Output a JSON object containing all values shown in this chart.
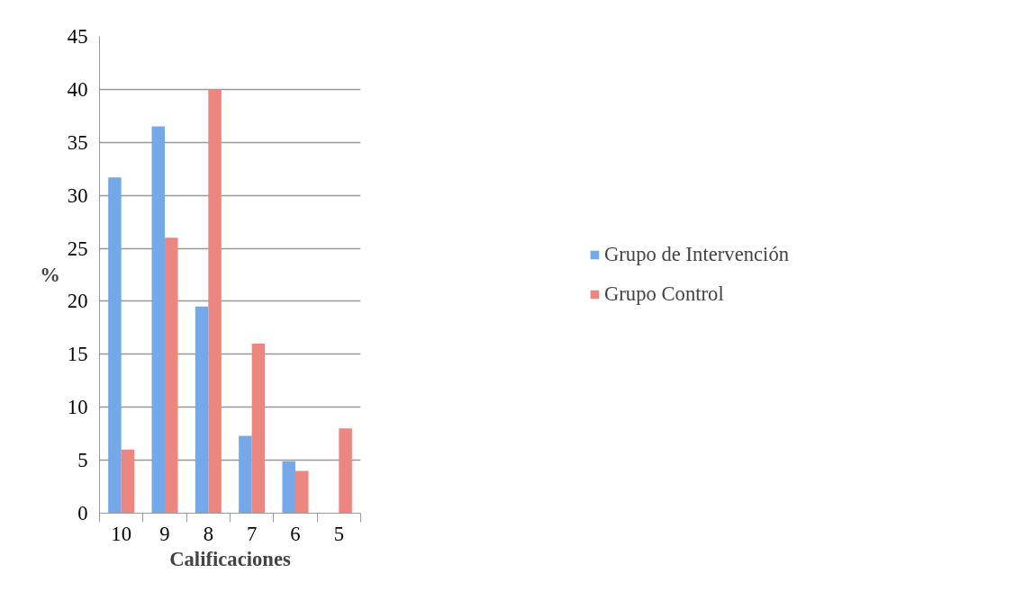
{
  "chart_data": {
    "type": "bar",
    "xlabel": "Calificaciones",
    "ylabel": "%",
    "categories": [
      "10",
      "9",
      "8",
      "7",
      "6",
      "5"
    ],
    "series": [
      {
        "name": "Grupo de Intervención",
        "color": "#73a9ea",
        "values": [
          31.7,
          36.5,
          19.5,
          7.3,
          4.9,
          0
        ]
      },
      {
        "name": "Grupo Control",
        "color": "#ee8680",
        "values": [
          6,
          26,
          40,
          16,
          4,
          8
        ]
      }
    ],
    "ylim": [
      0,
      45
    ],
    "yticks": [
      0,
      5,
      10,
      15,
      20,
      25,
      30,
      35,
      40,
      45
    ],
    "grid": "y",
    "legend": "right"
  }
}
